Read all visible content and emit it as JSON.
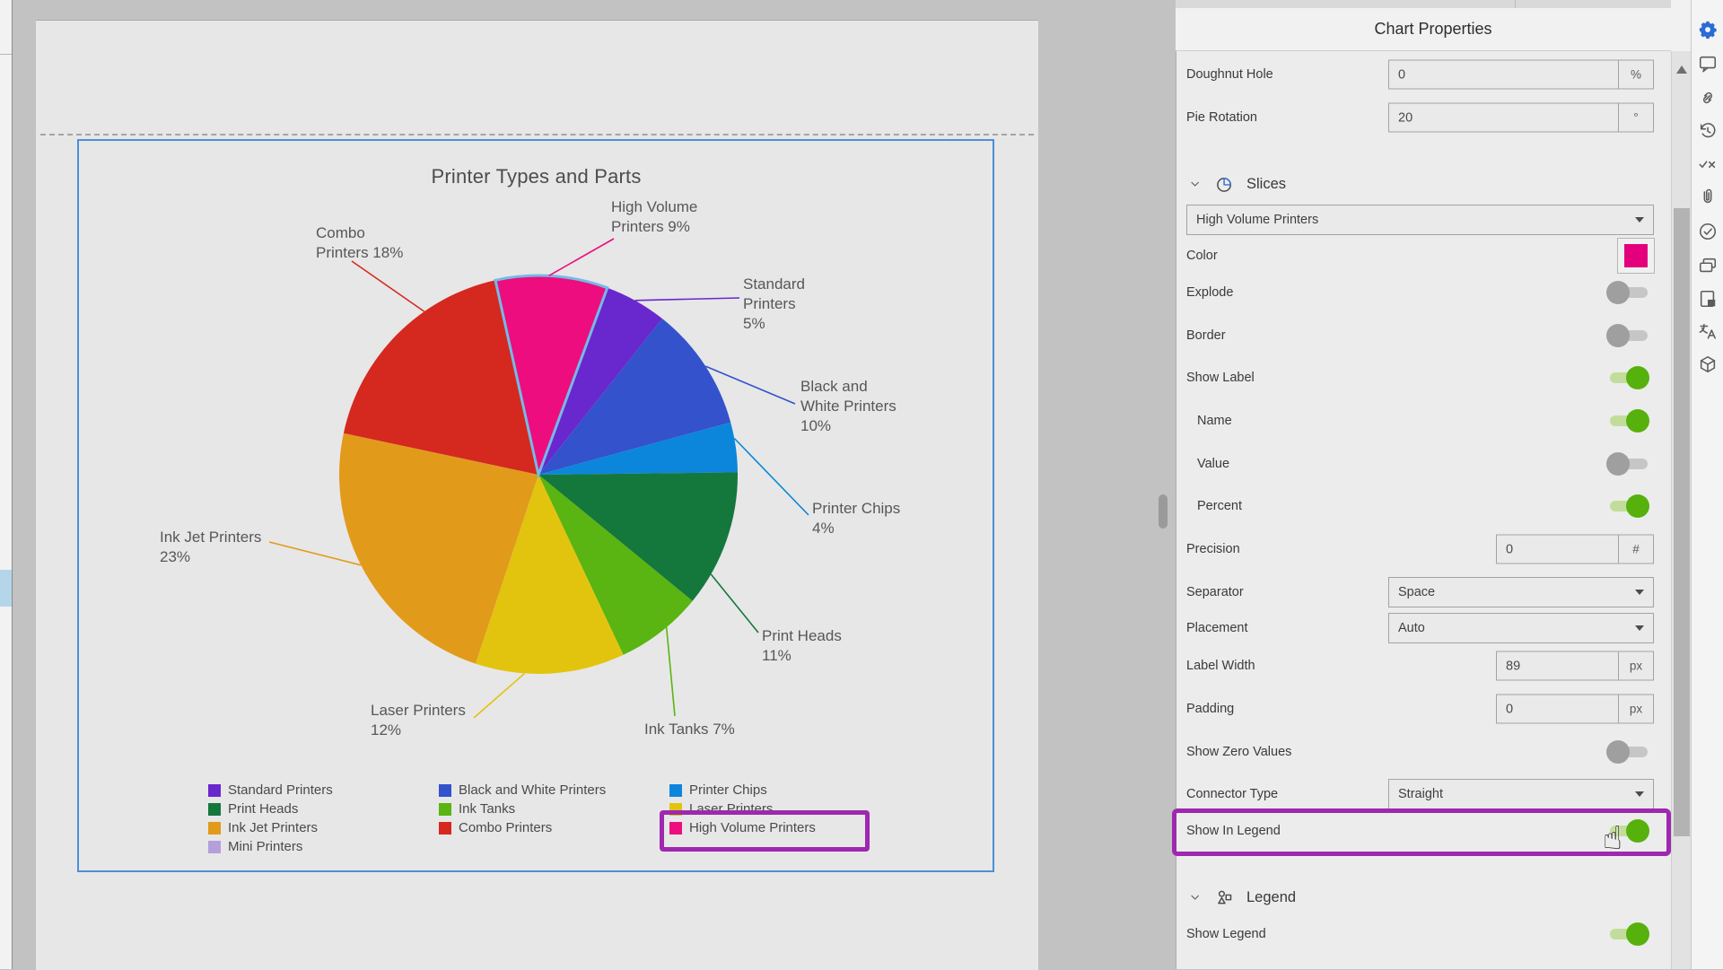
{
  "canvas": {
    "page_bg": "#e7e7e7",
    "workspace_bg": "#c2c2c2",
    "selection_blue": "#4a90d9",
    "highlight_purple": "#9e28b0"
  },
  "chart_data": {
    "type": "pie",
    "title": "Printer Types and Parts",
    "rotation_deg": 20,
    "doughnut_hole_pct": 0,
    "slices": [
      {
        "name": "High Volume Printers",
        "pct": 9,
        "color": "#ed0d7e",
        "label": "High Volume\nPrinters 9%",
        "selected": true
      },
      {
        "name": "Standard Printers",
        "pct": 5,
        "color": "#6927ce",
        "label": "Standard\nPrinters\n5%",
        "selected": false
      },
      {
        "name": "Black and White Printers",
        "pct": 10,
        "color": "#3352cc",
        "label": "Black and\nWhite Printers\n10%",
        "selected": false
      },
      {
        "name": "Printer Chips",
        "pct": 4,
        "color": "#0b86da",
        "label": "Printer Chips\n4%",
        "selected": false
      },
      {
        "name": "Print Heads",
        "pct": 11,
        "color": "#14783c",
        "label": "Print Heads\n11%",
        "selected": false
      },
      {
        "name": "Ink Tanks",
        "pct": 7,
        "color": "#5ab411",
        "label": "Ink Tanks 7%",
        "selected": false
      },
      {
        "name": "Laser Printers",
        "pct": 12,
        "color": "#e2c40f",
        "label": "Laser Printers\n12%",
        "selected": false
      },
      {
        "name": "Ink Jet Printers",
        "pct": 23,
        "color": "#e29a1b",
        "label": "Ink Jet Printers\n23%",
        "selected": false
      },
      {
        "name": "Combo Printers",
        "pct": 18,
        "color": "#d5281f",
        "label": "Combo\nPrinters 18%",
        "selected": false
      }
    ],
    "legend": {
      "position": "bottom",
      "items": [
        {
          "name": "Standard Printers",
          "color": "#6927ce"
        },
        {
          "name": "Print Heads",
          "color": "#14783c"
        },
        {
          "name": "Ink Jet Printers",
          "color": "#e29a1b"
        },
        {
          "name": "Mini Printers",
          "color": "#b49fdc"
        },
        {
          "name": "Black and White Printers",
          "color": "#3352cc"
        },
        {
          "name": "Ink Tanks",
          "color": "#5ab411"
        },
        {
          "name": "Combo Printers",
          "color": "#d5281f"
        },
        {
          "name": "Printer Chips",
          "color": "#0b86da"
        },
        {
          "name": "Laser Printers",
          "color": "#e2c40f"
        },
        {
          "name": "High Volume Printers",
          "color": "#ed0d7e"
        }
      ],
      "highlighted_item": "High Volume Printers"
    },
    "selected_slice_outline": "#74bae6"
  },
  "panel": {
    "title": "Chart Properties",
    "rows": [
      {
        "type": "number",
        "label": "Doughnut Hole",
        "value": "0",
        "unit": "%"
      },
      {
        "type": "number",
        "label": "Pie Rotation",
        "value": "20",
        "unit": "°"
      },
      {
        "type": "section",
        "label": "Slices",
        "icon": "pie-chart-icon"
      },
      {
        "type": "select-wide",
        "value": "High Volume Printers"
      },
      {
        "type": "color",
        "label": "Color",
        "value": "#e4007c"
      },
      {
        "type": "toggle",
        "label": "Explode",
        "on": false
      },
      {
        "type": "toggle",
        "label": "Border",
        "on": false
      },
      {
        "type": "toggle",
        "label": "Show Label",
        "on": true
      },
      {
        "type": "toggle",
        "label": "Name",
        "on": true,
        "indent": true
      },
      {
        "type": "toggle",
        "label": "Value",
        "on": false,
        "indent": true
      },
      {
        "type": "toggle",
        "label": "Percent",
        "on": true,
        "indent": true
      },
      {
        "type": "number",
        "label": "Precision",
        "value": "0",
        "unit": "#",
        "narrow": true
      },
      {
        "type": "select",
        "label": "Separator",
        "value": "Space"
      },
      {
        "type": "select",
        "label": "Placement",
        "value": "Auto"
      },
      {
        "type": "number",
        "label": "Label Width",
        "value": "89",
        "unit": "px",
        "narrow": true
      },
      {
        "type": "number",
        "label": "Padding",
        "value": "0",
        "unit": "px",
        "narrow": true
      },
      {
        "type": "toggle",
        "label": "Show Zero Values",
        "on": false
      },
      {
        "type": "select",
        "label": "Connector Type",
        "value": "Straight"
      },
      {
        "type": "toggle",
        "label": "Show In Legend",
        "on": true,
        "highlighted": true
      },
      {
        "type": "section",
        "label": "Legend",
        "icon": "legend-icon"
      },
      {
        "type": "toggle",
        "label": "Show Legend",
        "on": true
      }
    ]
  },
  "right_toolbar": {
    "active_color": "#2b6bd4",
    "icons": [
      {
        "name": "settings-gear-icon",
        "active": true
      },
      {
        "name": "comment-icon"
      },
      {
        "name": "link-icon"
      },
      {
        "name": "history-icon"
      },
      {
        "name": "accept-reject-icon"
      },
      {
        "name": "attachment-icon"
      },
      {
        "name": "approve-icon"
      },
      {
        "name": "comments-icon"
      },
      {
        "name": "note-page-icon"
      },
      {
        "name": "translate-icon"
      },
      {
        "name": "cube-3d-icon"
      }
    ]
  },
  "cursor": {
    "glyph": "☝"
  }
}
